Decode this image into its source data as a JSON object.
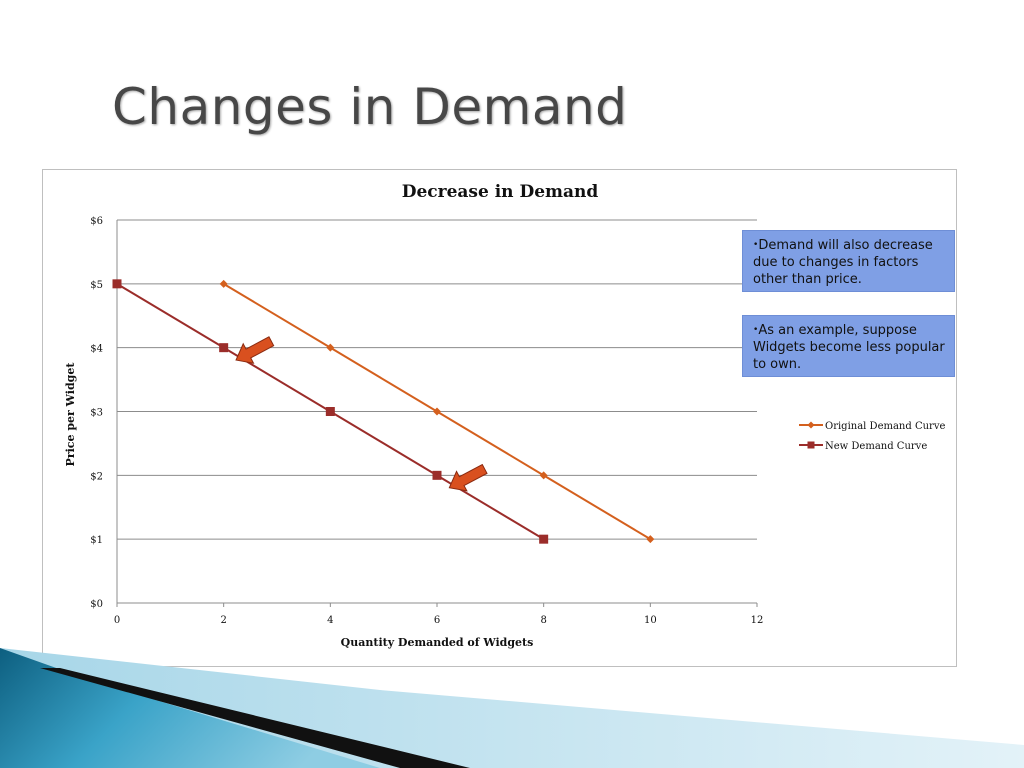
{
  "slide": {
    "title": "Changes in Demand",
    "notes": [
      {
        "bullet": "•",
        "text": "Demand will also decrease due to changes in factors other than price."
      },
      {
        "bullet": "•",
        "text": "As an example, suppose Widgets become less popular to own."
      }
    ]
  },
  "chart_data": {
    "type": "line",
    "title": "Decrease in Demand",
    "xlabel": "Quantity Demanded of Widgets",
    "ylabel": "Price per Widget",
    "xlim": [
      0,
      12
    ],
    "ylim": [
      0,
      6
    ],
    "x_ticks": [
      0,
      2,
      4,
      6,
      8,
      10,
      12
    ],
    "x_tick_labels": [
      "0",
      "2",
      "4",
      "6",
      "8",
      "10",
      "12"
    ],
    "y_ticks": [
      0,
      1,
      2,
      3,
      4,
      5,
      6
    ],
    "y_tick_labels": [
      "$0",
      "$1",
      "$2",
      "$3",
      "$4",
      "$5",
      "$6"
    ],
    "grid": "horizontal",
    "legend_position": "right",
    "series": [
      {
        "name": "Original Demand Curve",
        "color": "#d4601e",
        "marker": "diamond",
        "points": [
          [
            2,
            5
          ],
          [
            4,
            4
          ],
          [
            6,
            3
          ],
          [
            8,
            2
          ],
          [
            10,
            1
          ]
        ]
      },
      {
        "name": "New Demand Curve",
        "color": "#9b2d2a",
        "marker": "square",
        "points": [
          [
            0,
            5
          ],
          [
            2,
            4
          ],
          [
            4,
            3
          ],
          [
            6,
            2
          ],
          [
            8,
            1
          ]
        ]
      }
    ],
    "annotations": [
      {
        "type": "arrow",
        "direction": "down-left",
        "near": [
          2,
          4
        ],
        "color": "#d9501f"
      },
      {
        "type": "arrow",
        "direction": "down-left",
        "near": [
          6,
          2
        ],
        "color": "#d9501f"
      }
    ]
  }
}
